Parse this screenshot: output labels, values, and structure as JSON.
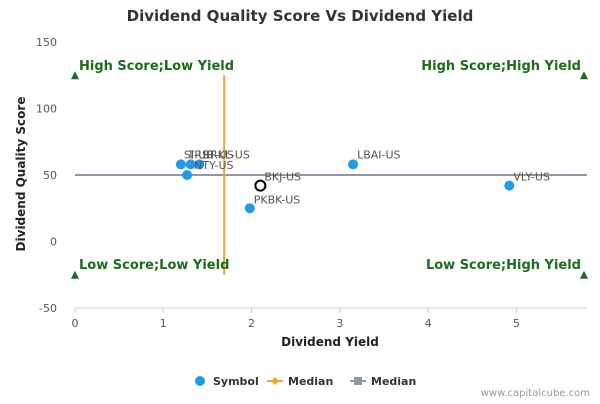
{
  "chart_data": {
    "type": "scatter",
    "title": "Dividend Quality Score Vs Dividend Yield",
    "xlabel": "Dividend Yield",
    "ylabel": "Dividend Quality Score",
    "xlim": [
      0,
      5.8
    ],
    "ylim": [
      -50,
      150
    ],
    "x_ticks": [
      0,
      1,
      2,
      3,
      4,
      5
    ],
    "y_ticks": [
      -50,
      0,
      50,
      100,
      150
    ],
    "grid": false,
    "series": [
      {
        "name": "Symbol",
        "color": "#1f9be8",
        "points": [
          {
            "label": "SI-US",
            "x": 1.2,
            "y": 58
          },
          {
            "label": "TRST-US",
            "x": 1.31,
            "y": 58
          },
          {
            "label": "BRKL-US",
            "x": 1.41,
            "y": 58
          },
          {
            "label": "NTY-US",
            "x": 1.27,
            "y": 50
          },
          {
            "label": "PKBK-US",
            "x": 1.98,
            "y": 25
          },
          {
            "label": "LBAI-US",
            "x": 3.15,
            "y": 58
          },
          {
            "label": "VLY-US",
            "x": 4.92,
            "y": 42
          }
        ]
      }
    ],
    "highlight": {
      "label": "BKJ-US",
      "x": 2.1,
      "y": 42
    },
    "median_x": {
      "name": "Median",
      "value": 1.69,
      "color": "#f5a623"
    },
    "median_y": {
      "name": "Median",
      "value": 50,
      "color": "#8e98a8"
    },
    "quadrant_labels": {
      "top_left": "High Score;Low Yield",
      "top_right": "High Score;High Yield",
      "bottom_left": "Low Score;Low Yield",
      "bottom_right": "Low Score;High Yield"
    },
    "quadrant_color": "#1a6e1a",
    "legend": {
      "placement": "bottom",
      "items": [
        {
          "label": "Symbol",
          "kind": "dot",
          "color": "#1f9be8"
        },
        {
          "label": "Median",
          "kind": "diamond-line",
          "color": "#f5a623"
        },
        {
          "label": "Median",
          "kind": "square-line",
          "color": "#8e98a8"
        }
      ]
    },
    "credit": "www.capitalcube.com"
  }
}
